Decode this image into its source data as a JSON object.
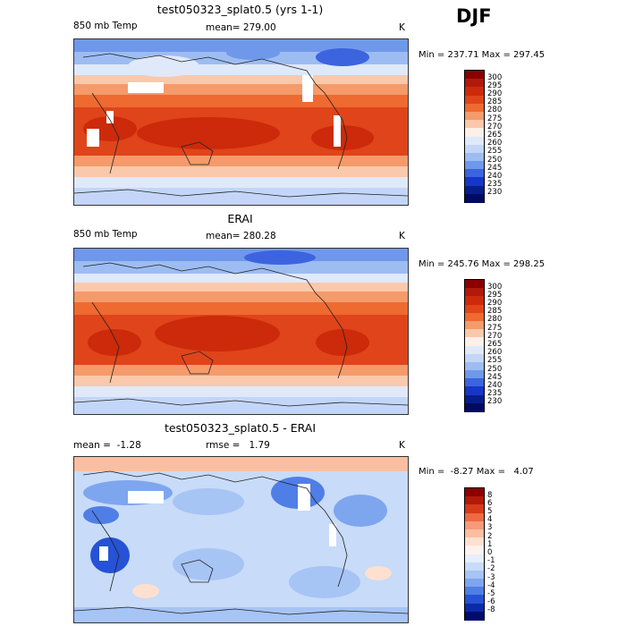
{
  "season": "DJF",
  "units": "K",
  "panels": [
    {
      "id": "model",
      "title": "test050323_splat0.5 (yrs 1-1)",
      "left_label": "850 mb Temp",
      "center_label": "mean= 279.00",
      "right_label": "K",
      "minmax": "Min = 237.71 Max = 297.45",
      "colorbar_labels": [
        "300",
        "295",
        "290",
        "285",
        "280",
        "275",
        "270",
        "265",
        "260",
        "255",
        "250",
        "245",
        "240",
        "235",
        "230"
      ],
      "colorbar_colors": [
        "#8b0000",
        "#b01a0a",
        "#cc2a0a",
        "#e0441a",
        "#ee6a30",
        "#f59a6a",
        "#fac8aa",
        "#fdf0e8",
        "#dfe9fa",
        "#c3d6f8",
        "#9dbcf2",
        "#6f98ea",
        "#3c64df",
        "#1636c8",
        "#061e8a",
        "#000b60"
      ]
    },
    {
      "id": "obs",
      "title": "ERAI",
      "left_label": "850 mb Temp",
      "center_label": "mean= 280.28",
      "right_label": "K",
      "minmax": "Min = 245.76 Max = 298.25",
      "colorbar_labels": [
        "300",
        "295",
        "290",
        "285",
        "280",
        "275",
        "270",
        "265",
        "260",
        "255",
        "250",
        "245",
        "240",
        "235",
        "230"
      ],
      "colorbar_colors": [
        "#8b0000",
        "#b01a0a",
        "#cc2a0a",
        "#e0441a",
        "#ee6a30",
        "#f59a6a",
        "#fac8aa",
        "#fdf0e8",
        "#dfe9fa",
        "#c3d6f8",
        "#9dbcf2",
        "#6f98ea",
        "#3c64df",
        "#1636c8",
        "#061e8a",
        "#000b60"
      ]
    },
    {
      "id": "diff",
      "title": "test050323_splat0.5 - ERAI",
      "left_label": "mean =  -1.28",
      "center_label": "rmse =   1.79",
      "right_label": "K",
      "minmax": "Min =  -8.27 Max =   4.07",
      "colorbar_labels": [
        "8",
        "6",
        "5",
        "4",
        "3",
        "2",
        "1",
        "0",
        "-1",
        "-2",
        "-3",
        "-4",
        "-5",
        "-6",
        "-8"
      ],
      "colorbar_colors": [
        "#8b0000",
        "#b01a0a",
        "#d63a1a",
        "#ee6a40",
        "#f59a7a",
        "#fabfa0",
        "#fde0d0",
        "#fdf2ee",
        "#e6eefc",
        "#c8dbf8",
        "#a6c4f4",
        "#7ea6ee",
        "#4f7ee6",
        "#2652d6",
        "#0c2aa8",
        "#000b70"
      ]
    }
  ]
}
